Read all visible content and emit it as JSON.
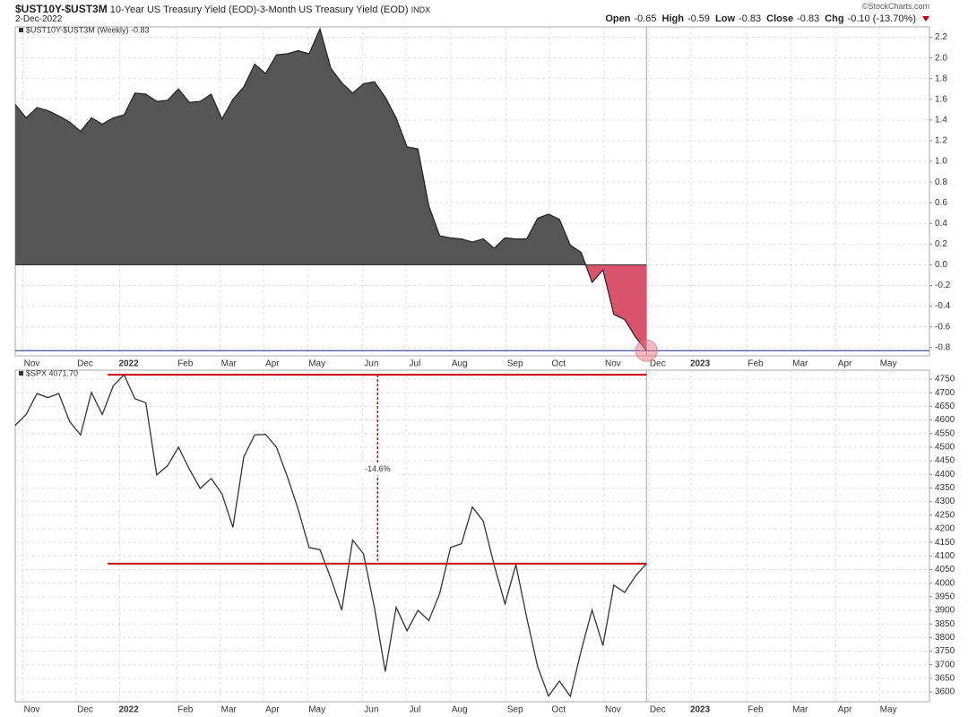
{
  "header": {
    "symbol": "$UST10Y-$UST3M",
    "name": "10-Year US Treasury Yield (EOD)-3-Month US Treasury Yield (EOD)",
    "exchange": "INDX",
    "date": "2-Dec-2022",
    "credit": "©StockCharts.com",
    "ohlc": [
      {
        "label": "Open",
        "value": "-0.65"
      },
      {
        "label": "High",
        "value": "-0.59"
      },
      {
        "label": "Low",
        "value": "-0.83"
      },
      {
        "label": "Close",
        "value": "-0.83"
      },
      {
        "label": "Chg",
        "value": "-0.10 (-13.70%)"
      }
    ]
  },
  "chart_data": [
    {
      "type": "area",
      "legend": "$UST10Y-$UST3M (Weekly) -0.83",
      "xlim": [
        0,
        84
      ],
      "xticks": [
        {
          "value": 0.7,
          "label": "Nov"
        },
        {
          "value": 5.6,
          "label": "Dec"
        },
        {
          "value": 9.6,
          "label": "2022"
        },
        {
          "value": 14.8,
          "label": "Feb"
        },
        {
          "value": 18.8,
          "label": "Mar"
        },
        {
          "value": 22.8,
          "label": "Apr"
        },
        {
          "value": 26.9,
          "label": "May"
        },
        {
          "value": 31.9,
          "label": "Jun"
        },
        {
          "value": 35.9,
          "label": "Jul"
        },
        {
          "value": 40.0,
          "label": "Aug"
        },
        {
          "value": 45.1,
          "label": "Sep"
        },
        {
          "value": 49.1,
          "label": "Oct"
        },
        {
          "value": 54.1,
          "label": "Nov"
        },
        {
          "value": 58.2,
          "label": "Dec"
        },
        {
          "value": 62.1,
          "label": "2023"
        },
        {
          "value": 67.2,
          "label": "Feb"
        },
        {
          "value": 71.3,
          "label": "Mar"
        },
        {
          "value": 75.4,
          "label": "Apr"
        },
        {
          "value": 79.4,
          "label": "May"
        }
      ],
      "ylim": [
        -0.88,
        2.3
      ],
      "yticks": [
        -0.8,
        -0.6,
        -0.4,
        -0.2,
        {
          "value": 0,
          "label": "0.0"
        },
        0.2,
        0.4,
        0.6,
        0.8,
        {
          "value": 1,
          "label": "1.0"
        },
        1.2,
        1.4,
        1.6,
        1.8,
        {
          "value": 2,
          "label": "2.0"
        },
        2.2
      ],
      "grid": true,
      "cursor_x": 58,
      "series": [
        {
          "name": "$UST10Y-$UST3M",
          "color": "#555555",
          "negative_color": "#d9536b",
          "line_color": "#222222",
          "values": [
            1.55,
            1.42,
            1.52,
            1.49,
            1.44,
            1.38,
            1.29,
            1.42,
            1.36,
            1.42,
            1.45,
            1.66,
            1.65,
            1.58,
            1.59,
            1.7,
            1.57,
            1.58,
            1.65,
            1.41,
            1.6,
            1.72,
            1.94,
            1.85,
            2.03,
            2.04,
            2.07,
            2.04,
            2.28,
            1.9,
            1.76,
            1.66,
            1.75,
            1.77,
            1.62,
            1.42,
            1.14,
            1.12,
            0.57,
            0.28,
            0.26,
            0.25,
            0.22,
            0.25,
            0.16,
            0.26,
            0.25,
            0.25,
            0.45,
            0.49,
            0.44,
            0.19,
            0.12,
            -0.17,
            -0.05,
            -0.48,
            -0.53,
            -0.7,
            -0.83
          ]
        }
      ]
    },
    {
      "type": "line",
      "legend": "$SPX 4071.70",
      "xlim": [
        0,
        84
      ],
      "xticks": [
        {
          "value": 0.7,
          "label": "Nov"
        },
        {
          "value": 5.6,
          "label": "Dec"
        },
        {
          "value": 9.6,
          "label": "2022"
        },
        {
          "value": 14.8,
          "label": "Feb"
        },
        {
          "value": 18.8,
          "label": "Mar"
        },
        {
          "value": 22.8,
          "label": "Apr"
        },
        {
          "value": 26.9,
          "label": "May"
        },
        {
          "value": 31.9,
          "label": "Jun"
        },
        {
          "value": 35.9,
          "label": "Jul"
        },
        {
          "value": 40.0,
          "label": "Aug"
        },
        {
          "value": 45.1,
          "label": "Sep"
        },
        {
          "value": 49.1,
          "label": "Oct"
        },
        {
          "value": 54.1,
          "label": "Nov"
        },
        {
          "value": 58.2,
          "label": "Dec"
        },
        {
          "value": 62.1,
          "label": "2023"
        },
        {
          "value": 67.2,
          "label": "Feb"
        },
        {
          "value": 71.3,
          "label": "Mar"
        },
        {
          "value": 75.4,
          "label": "Apr"
        },
        {
          "value": 79.4,
          "label": "May"
        }
      ],
      "ylim": [
        3564,
        4783
      ],
      "yticks": [
        3600,
        3650,
        3700,
        3750,
        3800,
        3850,
        3900,
        3950,
        4000,
        4050,
        4100,
        4150,
        4200,
        4250,
        4300,
        4350,
        4400,
        4450,
        4500,
        4550,
        4600,
        4650,
        4700,
        4750
      ],
      "grid": true,
      "cursor_x": 58,
      "series": [
        {
          "name": "$SPX",
          "color": "#333333",
          "values": [
            4580,
            4620,
            4697,
            4682,
            4697,
            4594,
            4545,
            4701,
            4620,
            4725,
            4766,
            4678,
            4663,
            4398,
            4432,
            4500,
            4419,
            4348,
            4385,
            4328,
            4205,
            4464,
            4545,
            4547,
            4500,
            4392,
            4271,
            4131,
            4123,
            4017,
            3901,
            4158,
            4108,
            3911,
            3675,
            3911,
            3825,
            3900,
            3863,
            3962,
            4131,
            4145,
            4280,
            4228,
            4067,
            3924,
            4068,
            3873,
            3693,
            3585,
            3640,
            3584,
            3752,
            3901,
            3771,
            3993,
            3966,
            4027,
            4071.7
          ]
        }
      ],
      "ref_lines": {
        "values": [
          4766,
          4071.7
        ],
        "x_from": 8.5,
        "x_to": 58,
        "color": "#cc0000"
      },
      "measure": {
        "x": 33.3,
        "label": "-14.6%"
      }
    }
  ]
}
